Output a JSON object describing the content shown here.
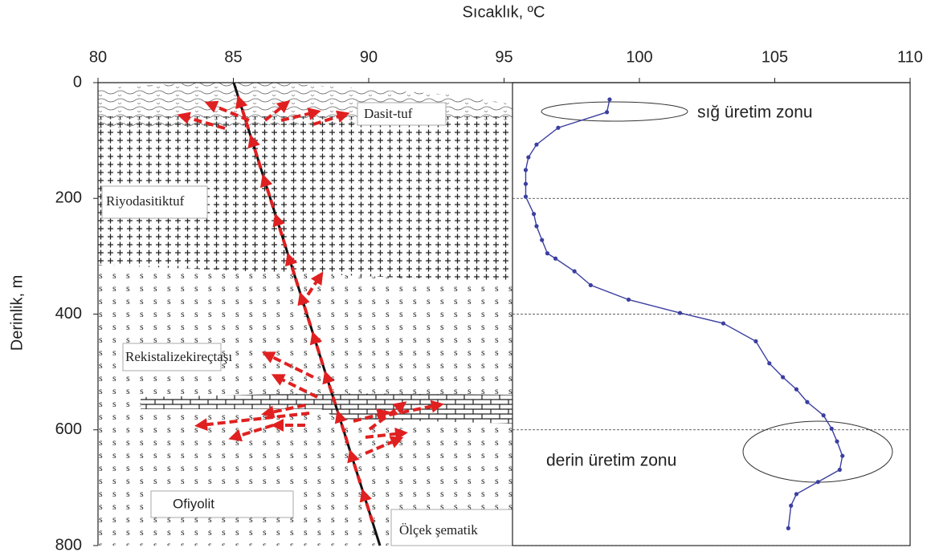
{
  "chart_data": {
    "type": "line",
    "x_label": "Sıcaklık, ºC",
    "y_label": "Derinlik, m",
    "xlim": [
      80,
      110
    ],
    "xticks": [
      80,
      85,
      90,
      95,
      100,
      105,
      110
    ],
    "ylim": [
      0,
      800
    ],
    "yticks": [
      0,
      200,
      400,
      600,
      800
    ],
    "y_inverted": true,
    "grid": true,
    "color": "#3b3fa0",
    "x": [
      98.9,
      98.8,
      97.0,
      96.2,
      95.9,
      95.8,
      95.8,
      95.8,
      96.1,
      96.2,
      96.4,
      96.6,
      96.9,
      97.6,
      98.2,
      99.6,
      101.5,
      103.1,
      104.3,
      104.8,
      105.3,
      105.8,
      106.2,
      106.8,
      107.1,
      107.3,
      107.5,
      107.4,
      106.6,
      105.8,
      105.6,
      105.5
    ],
    "values": [
      29,
      51,
      78,
      107,
      129,
      151,
      175,
      197,
      227,
      248,
      272,
      295,
      304,
      326,
      350,
      375,
      398,
      416,
      447,
      485,
      509,
      530,
      552,
      575,
      598,
      620,
      645,
      669,
      690,
      711,
      731,
      770
    ],
    "zone_labels": [
      "sığ üretim zonu",
      "derin üretim zonu"
    ],
    "layer_labels": [
      "Dasit-tuf",
      "Riyodasitiktuf",
      "Rekistalizekireçtaşı",
      "Ofiyolit",
      "Ölçek şematik"
    ]
  }
}
